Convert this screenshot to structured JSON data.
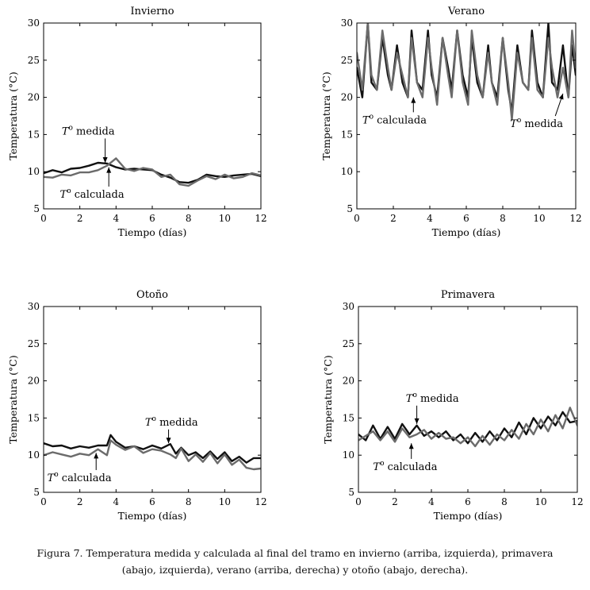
{
  "colors": {
    "medida": "#111111",
    "calculada": "#6b6b6b",
    "axis": "#000000"
  },
  "caption": {
    "line1": "Figura 7. Temperatura medida y calculada al final del tramo en invierno (arriba, izquierda), primavera",
    "line2": "(abajo, izquierda), verano (arriba, derecha) y otoño (abajo, derecha)."
  },
  "chart_data": [
    {
      "type": "line",
      "title": "Invierno",
      "xlabel": "Tiempo (días)",
      "ylabel": "Temperatura (°C)",
      "xlim": [
        0,
        12
      ],
      "ylim": [
        5,
        30
      ],
      "xticks": [
        0,
        2,
        4,
        6,
        8,
        10,
        12
      ],
      "yticks": [
        5,
        10,
        15,
        20,
        25,
        30
      ],
      "series": [
        {
          "name": "Tº medida",
          "x": [
            0,
            0.5,
            1,
            1.5,
            2,
            2.5,
            3,
            3.5,
            4,
            4.5,
            5,
            5.5,
            6,
            6.5,
            7,
            7.5,
            8,
            8.5,
            9,
            9.5,
            10,
            10.5,
            11,
            11.5,
            12
          ],
          "values": [
            9.8,
            10.2,
            9.9,
            10.4,
            10.5,
            10.8,
            11.2,
            11.1,
            10.6,
            10.3,
            10.4,
            10.3,
            10.2,
            9.6,
            9.2,
            8.6,
            8.5,
            8.9,
            9.6,
            9.4,
            9.3,
            9.5,
            9.6,
            9.7,
            9.4
          ]
        },
        {
          "name": "Tº calculada",
          "x": [
            0,
            0.5,
            1,
            1.5,
            2,
            2.5,
            3,
            3.5,
            4,
            4.5,
            5,
            5.5,
            6,
            6.5,
            7,
            7.5,
            8,
            8.5,
            9,
            9.5,
            10,
            10.5,
            11,
            11.5,
            12
          ],
          "values": [
            9.3,
            9.2,
            9.6,
            9.5,
            9.9,
            9.9,
            10.2,
            10.8,
            11.8,
            10.4,
            10.1,
            10.5,
            10.3,
            9.3,
            9.6,
            8.3,
            8.1,
            8.8,
            9.4,
            9.0,
            9.6,
            9.1,
            9.3,
            9.8,
            9.5
          ]
        }
      ],
      "annotations": [
        {
          "pre": "T",
          "sup": "o",
          "post": " medida",
          "x": 1.0,
          "y": 15.0,
          "arrow_to": [
            3.4,
            11.2
          ]
        },
        {
          "pre": "T",
          "sup": "o",
          "post": " calculada",
          "x": 0.9,
          "y": 6.5,
          "arrow_to": [
            3.6,
            10.6
          ]
        }
      ]
    },
    {
      "type": "line",
      "title": "Verano",
      "xlabel": "Tiempo (días)",
      "ylabel": "Temperatura (°C)",
      "xlim": [
        0,
        12
      ],
      "ylim": [
        5,
        30
      ],
      "xticks": [
        0,
        2,
        4,
        6,
        8,
        10,
        12
      ],
      "yticks": [
        5,
        10,
        15,
        20,
        25,
        30
      ],
      "series": [
        {
          "name": "Tº medida",
          "x": [
            0,
            0.3,
            0.6,
            0.8,
            1.1,
            1.4,
            1.7,
            1.9,
            2.2,
            2.5,
            2.8,
            3.0,
            3.3,
            3.6,
            3.9,
            4.1,
            4.4,
            4.7,
            5.0,
            5.2,
            5.5,
            5.8,
            6.1,
            6.3,
            6.6,
            6.9,
            7.2,
            7.4,
            7.7,
            8.0,
            8.3,
            8.5,
            8.8,
            9.1,
            9.4,
            9.6,
            9.9,
            10.2,
            10.5,
            10.7,
            11.0,
            11.3,
            11.6,
            11.8,
            12.0
          ],
          "values": [
            24,
            20,
            30,
            22,
            21,
            28,
            23,
            21,
            27,
            22,
            20,
            29,
            22,
            21,
            29,
            23,
            20,
            28,
            24,
            21,
            29,
            23,
            20,
            28,
            22,
            20,
            27,
            22,
            20,
            28,
            21,
            18,
            27,
            22,
            21,
            29,
            22,
            20,
            30,
            22,
            21,
            27,
            20,
            27,
            23
          ]
        },
        {
          "name": "Tº calculada",
          "x": [
            0,
            0.3,
            0.6,
            0.8,
            1.1,
            1.4,
            1.7,
            1.9,
            2.2,
            2.5,
            2.8,
            3.0,
            3.3,
            3.6,
            3.9,
            4.1,
            4.4,
            4.7,
            5.0,
            5.2,
            5.5,
            5.8,
            6.1,
            6.3,
            6.6,
            6.9,
            7.2,
            7.4,
            7.7,
            8.0,
            8.3,
            8.5,
            8.8,
            9.1,
            9.4,
            9.6,
            9.9,
            10.2,
            10.5,
            10.7,
            11.0,
            11.3,
            11.6,
            11.8,
            12.0
          ],
          "values": [
            26,
            21,
            30,
            23,
            21,
            29,
            24,
            21,
            26,
            23,
            20,
            28,
            22,
            20,
            28,
            24,
            19,
            28,
            23,
            20,
            29,
            22,
            19,
            29,
            23,
            20,
            26,
            22,
            19,
            28,
            22,
            17,
            26,
            22,
            21,
            28,
            21,
            20,
            28,
            24,
            20,
            24,
            20,
            29,
            24
          ]
        }
      ],
      "annotations": [
        {
          "pre": "T",
          "sup": "o",
          "post": " calculada",
          "x": 0.3,
          "y": 16.5,
          "arrow_to": [
            3.1,
            20.0
          ]
        },
        {
          "pre": "T",
          "sup": "o",
          "post": " medida",
          "x": 8.4,
          "y": 16.0,
          "arrow_to": [
            11.3,
            20.5
          ]
        }
      ]
    },
    {
      "type": "line",
      "title": "Otoño",
      "xlabel": "Tiempo (días)",
      "ylabel": "Temperatura (°C)",
      "xlim": [
        0,
        12
      ],
      "ylim": [
        5,
        30
      ],
      "xticks": [
        0,
        2,
        4,
        6,
        8,
        10,
        12
      ],
      "yticks": [
        5,
        10,
        15,
        20,
        25,
        30
      ],
      "series": [
        {
          "name": "Tº medida",
          "x": [
            0,
            0.5,
            1,
            1.5,
            2,
            2.5,
            3,
            3.5,
            3.7,
            4,
            4.5,
            5,
            5.5,
            6,
            6.5,
            7,
            7.3,
            7.6,
            8,
            8.4,
            8.8,
            9.2,
            9.6,
            10,
            10.4,
            10.8,
            11.2,
            11.6,
            12
          ],
          "values": [
            11.6,
            11.2,
            11.3,
            10.9,
            11.2,
            11.0,
            11.3,
            11.3,
            12.7,
            11.8,
            11.0,
            11.2,
            10.8,
            11.3,
            10.9,
            11.5,
            10.2,
            11.0,
            10.0,
            10.4,
            9.6,
            10.5,
            9.5,
            10.4,
            9.2,
            9.8,
            9.0,
            9.6,
            9.6
          ]
        },
        {
          "name": "Tº calculada",
          "x": [
            0,
            0.5,
            1,
            1.5,
            2,
            2.5,
            3,
            3.5,
            3.7,
            4,
            4.5,
            5,
            5.5,
            6,
            6.5,
            7,
            7.3,
            7.6,
            8,
            8.4,
            8.8,
            9.2,
            9.6,
            10,
            10.4,
            10.8,
            11.2,
            11.6,
            12
          ],
          "values": [
            10.0,
            10.4,
            10.1,
            9.8,
            10.2,
            10.0,
            10.8,
            10.0,
            12.0,
            11.4,
            10.7,
            11.2,
            10.3,
            10.8,
            10.6,
            10.1,
            9.6,
            10.9,
            9.2,
            10.1,
            9.1,
            10.3,
            8.9,
            10.1,
            8.7,
            9.4,
            8.3,
            8.1,
            8.2
          ]
        }
      ],
      "annotations": [
        {
          "pre": "T",
          "sup": "o",
          "post": " medida",
          "x": 5.6,
          "y": 14.0,
          "arrow_to": [
            6.9,
            11.6
          ]
        },
        {
          "pre": "T",
          "sup": "o",
          "post": " calculada",
          "x": 0.2,
          "y": 6.5,
          "arrow_to": [
            2.9,
            10.3
          ]
        }
      ]
    },
    {
      "type": "line",
      "title": "Primavera",
      "xlabel": "Tiempo (días)",
      "ylabel": "Temperatura (°C)",
      "xlim": [
        0,
        12
      ],
      "ylim": [
        5,
        30
      ],
      "xticks": [
        0,
        2,
        4,
        6,
        8,
        10,
        12
      ],
      "yticks": [
        5,
        10,
        15,
        20,
        25,
        30
      ],
      "series": [
        {
          "name": "Tº medida",
          "x": [
            0,
            0.4,
            0.8,
            1.2,
            1.6,
            2.0,
            2.4,
            2.8,
            3.2,
            3.6,
            4.0,
            4.4,
            4.8,
            5.2,
            5.6,
            6.0,
            6.4,
            6.8,
            7.2,
            7.6,
            8.0,
            8.4,
            8.8,
            9.2,
            9.6,
            10.0,
            10.4,
            10.8,
            11.2,
            11.6,
            12.0
          ],
          "values": [
            12.8,
            12.0,
            14.0,
            12.2,
            13.8,
            12.2,
            14.2,
            12.8,
            14.0,
            12.6,
            13.2,
            12.4,
            13.2,
            12.0,
            12.8,
            11.6,
            13.0,
            11.8,
            13.2,
            12.0,
            13.6,
            12.4,
            14.4,
            12.8,
            15.0,
            13.6,
            15.2,
            14.0,
            15.8,
            14.4,
            14.6
          ]
        },
        {
          "name": "Tº calculada",
          "x": [
            0,
            0.4,
            0.8,
            1.2,
            1.6,
            2.0,
            2.4,
            2.8,
            3.2,
            3.6,
            4.0,
            4.4,
            4.8,
            5.2,
            5.6,
            6.0,
            6.4,
            6.8,
            7.2,
            7.6,
            8.0,
            8.4,
            8.8,
            9.2,
            9.6,
            10.0,
            10.4,
            10.8,
            11.2,
            11.6,
            12.0
          ],
          "values": [
            12.0,
            12.6,
            13.2,
            12.0,
            13.2,
            11.8,
            13.6,
            12.4,
            12.8,
            13.4,
            12.2,
            13.0,
            12.2,
            12.4,
            11.6,
            12.4,
            11.2,
            12.6,
            11.4,
            12.8,
            12.0,
            13.4,
            12.2,
            14.2,
            12.8,
            14.8,
            13.2,
            15.4,
            13.6,
            16.4,
            14.0
          ]
        }
      ],
      "annotations": [
        {
          "pre": "T",
          "sup": "o",
          "post": " medida",
          "x": 2.6,
          "y": 17.2,
          "arrow_to": [
            3.2,
            14.2
          ]
        },
        {
          "pre": "T",
          "sup": "o",
          "post": " calculada",
          "x": 0.8,
          "y": 8.0,
          "arrow_to": [
            2.9,
            11.6
          ]
        }
      ]
    }
  ]
}
